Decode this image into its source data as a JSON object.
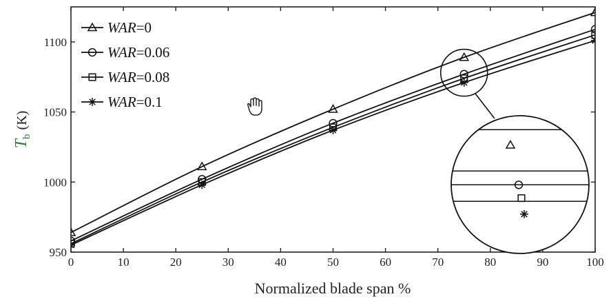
{
  "chart_data": {
    "type": "line",
    "x": [
      0,
      25,
      50,
      75,
      100
    ],
    "series": [
      {
        "name": "WAR=0",
        "legend_var": "WAR",
        "legend_val": "=0",
        "marker": "triangle",
        "values": [
          964,
          1011,
          1052,
          1089,
          1121
        ]
      },
      {
        "name": "WAR=0.06",
        "legend_var": "WAR",
        "legend_val": "=0.06",
        "marker": "circle",
        "values": [
          958,
          1002,
          1042,
          1077,
          1109
        ]
      },
      {
        "name": "WAR=0.08",
        "legend_var": "WAR",
        "legend_val": "=0.08",
        "marker": "square",
        "values": [
          956,
          1000,
          1039,
          1074,
          1105
        ]
      },
      {
        "name": "WAR=0.1",
        "legend_var": "WAR",
        "legend_val": "=0.1",
        "marker": "star",
        "values": [
          955,
          998,
          1037,
          1071,
          1101
        ]
      }
    ],
    "xlabel": "Normalized blade span %",
    "ylabel_symbol": "T",
    "ylabel_subscript": "b",
    "ylabel_unit": "(K)",
    "xlim": [
      0,
      100
    ],
    "ylim": [
      950,
      1125
    ],
    "xticks": [
      0,
      10,
      20,
      30,
      40,
      50,
      60,
      70,
      80,
      90,
      100
    ],
    "yticks": [
      950,
      1000,
      1050,
      1100
    ],
    "grid": false,
    "legend_position": "top-left",
    "zoom_inset": {
      "x": 75,
      "y": 1078
    }
  },
  "colors": {
    "line": "#111111",
    "ylabel_symbol": "#2f7d33",
    "axis": "#222222"
  },
  "icons": {
    "cursor": "hand-cursor-icon"
  }
}
